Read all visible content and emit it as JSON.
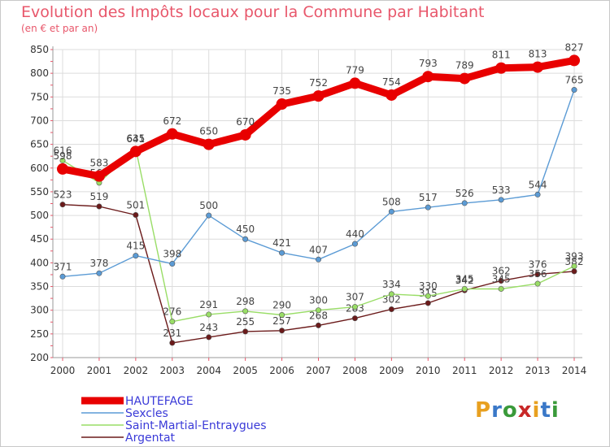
{
  "title": "Evolution des Impôts locaux pour la Commune par Habitant",
  "subtitle": "(en € et par an)",
  "logo": {
    "text": "Proxiti",
    "colors": [
      "#e8a020",
      "#3a78c8",
      "#3a9a3a",
      "#c82828",
      "#e8a020",
      "#3a78c8",
      "#3a9a3a"
    ]
  },
  "colors": {
    "title": "#e8576b",
    "grid": "#dcdcdc",
    "axis_tick": "#e8576b"
  },
  "chart_data": {
    "type": "line",
    "title": "Evolution des Impôts locaux pour la Commune par Habitant",
    "ylabel": "(en € et par an)",
    "xlabel": "",
    "ylim": [
      200,
      850
    ],
    "yticks": [
      200,
      250,
      300,
      350,
      400,
      450,
      500,
      550,
      600,
      650,
      700,
      750,
      800,
      850
    ],
    "x": [
      "2000",
      "2001",
      "2002",
      "2003",
      "2004",
      "2005",
      "2006",
      "2007",
      "2008",
      "2009",
      "2010",
      "2011",
      "2012",
      "2013",
      "2014"
    ],
    "series": [
      {
        "name": "HAUTEFAGE",
        "color": "#e80000",
        "width": "thick",
        "values": [
          598,
          583,
          635,
          672,
          650,
          670,
          735,
          752,
          779,
          754,
          793,
          789,
          811,
          813,
          827
        ],
        "labels": [
          "598",
          "583",
          "635",
          "672",
          "650",
          "670",
          "735",
          "752",
          "779",
          "754",
          "793",
          "789",
          "811",
          "813",
          "827"
        ]
      },
      {
        "name": "Sexcles",
        "color": "#5b9bd5",
        "width": "thin",
        "values": [
          371,
          378,
          415,
          398,
          500,
          450,
          421,
          407,
          440,
          508,
          517,
          526,
          533,
          544,
          765
        ],
        "labels": [
          "371",
          "378",
          "415",
          "398",
          "500",
          "450",
          "421",
          "407",
          "440",
          "508",
          "517",
          "526",
          "533",
          "544",
          "765"
        ]
      },
      {
        "name": "Saint-Martial-Entraygues",
        "color": "#99dd66",
        "width": "thin",
        "values": [
          616,
          569,
          641,
          276,
          291,
          298,
          290,
          300,
          307,
          334,
          330,
          345,
          345,
          356,
          393
        ],
        "labels": [
          "616",
          "569",
          "641",
          "276",
          "291",
          "298",
          "290",
          "300",
          "307",
          "334",
          "330",
          "345",
          "345",
          "356",
          "393"
        ]
      },
      {
        "name": "Argentat",
        "color": "#6b1a1a",
        "width": "thin",
        "values": [
          523,
          519,
          501,
          231,
          243,
          255,
          257,
          268,
          283,
          302,
          315,
          342,
          362,
          376,
          382
        ],
        "labels": [
          "523",
          "519",
          "501",
          "231",
          "243",
          "255",
          "257",
          "268",
          "283",
          "302",
          "315",
          "342",
          "362",
          "376",
          "382"
        ]
      }
    ]
  }
}
